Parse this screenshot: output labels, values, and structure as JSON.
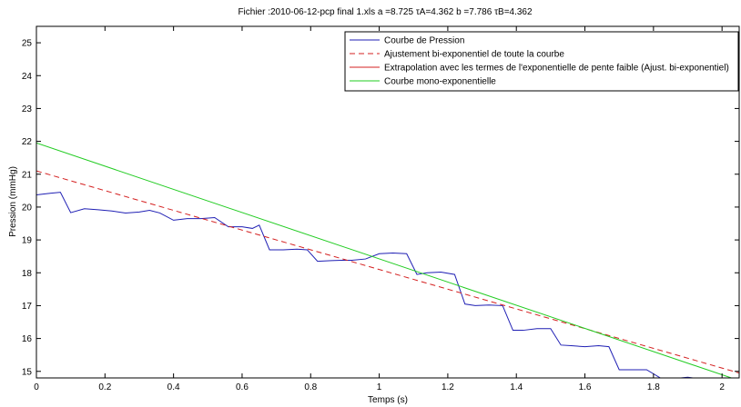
{
  "chart_data": {
    "type": "line",
    "title": "Fichier :2010-06-12-pcp final 1.xls  a =8.725  τA=4.362  b =7.786  τB=4.362",
    "xlabel": "Temps (s)",
    "ylabel": "Pression (mmHg)",
    "xlim": [
      0,
      2.05
    ],
    "ylim": [
      14.8,
      25.5
    ],
    "xticks": [
      0,
      0.2,
      0.4,
      0.6,
      0.8,
      1,
      1.2,
      1.4,
      1.6,
      1.8,
      2
    ],
    "xtick_labels": [
      "0",
      "0.2",
      "0.4",
      "0.6",
      "0.8",
      "1",
      "1.2",
      "1.4",
      "1.6",
      "1.8",
      "2"
    ],
    "yticks": [
      15,
      16,
      17,
      18,
      19,
      20,
      21,
      22,
      23,
      24,
      25
    ],
    "ytick_labels": [
      "15",
      "16",
      "17",
      "18",
      "19",
      "20",
      "21",
      "22",
      "23",
      "24",
      "25"
    ],
    "grid": false,
    "legend_position": "top-right",
    "series": [
      {
        "name": "Courbe de Pression",
        "color": "#1f1fb4",
        "style": "solid",
        "x": [
          0,
          0.04,
          0.07,
          0.1,
          0.14,
          0.18,
          0.22,
          0.26,
          0.3,
          0.33,
          0.36,
          0.4,
          0.44,
          0.48,
          0.52,
          0.56,
          0.6,
          0.63,
          0.65,
          0.68,
          0.72,
          0.76,
          0.79,
          0.82,
          0.86,
          0.89,
          0.92,
          0.96,
          1.0,
          1.04,
          1.08,
          1.11,
          1.14,
          1.18,
          1.22,
          1.25,
          1.28,
          1.32,
          1.36,
          1.39,
          1.42,
          1.46,
          1.5,
          1.53,
          1.56,
          1.6,
          1.64,
          1.67,
          1.7,
          1.74,
          1.78,
          1.82,
          1.86,
          1.9,
          1.93,
          1.96,
          2.0,
          2.05
        ],
        "y": [
          20.37,
          20.42,
          20.45,
          19.83,
          19.95,
          19.92,
          19.88,
          19.82,
          19.85,
          19.9,
          19.82,
          19.6,
          19.65,
          19.65,
          19.68,
          19.4,
          19.4,
          19.35,
          19.45,
          18.7,
          18.7,
          18.72,
          18.7,
          18.35,
          18.37,
          18.38,
          18.38,
          18.42,
          18.58,
          18.6,
          18.58,
          17.95,
          18.0,
          18.02,
          17.95,
          17.05,
          17.0,
          17.02,
          17.0,
          16.25,
          16.25,
          16.3,
          16.3,
          15.8,
          15.78,
          15.75,
          15.78,
          15.75,
          15.05,
          15.05,
          15.05,
          14.8,
          14.78,
          14.82,
          14.78,
          14.78,
          14.75,
          14.75
        ]
      },
      {
        "name": "Ajustement bi-exponentiel de toute la courbe",
        "color": "#d42020",
        "style": "dashed",
        "x": [
          0,
          2.05
        ],
        "y": [
          21.1,
          14.95
        ]
      },
      {
        "name": "Extrapolation avec les termes de l'exponentielle de pente faible (Ajust. bi-exponentiel)",
        "color": "#d42020",
        "style": "solid",
        "x": [],
        "y": []
      },
      {
        "name": "Courbe mono-exponentielle",
        "color": "#22cc22",
        "style": "solid",
        "x": [
          0,
          2.05
        ],
        "y": [
          21.95,
          14.72
        ]
      }
    ]
  }
}
